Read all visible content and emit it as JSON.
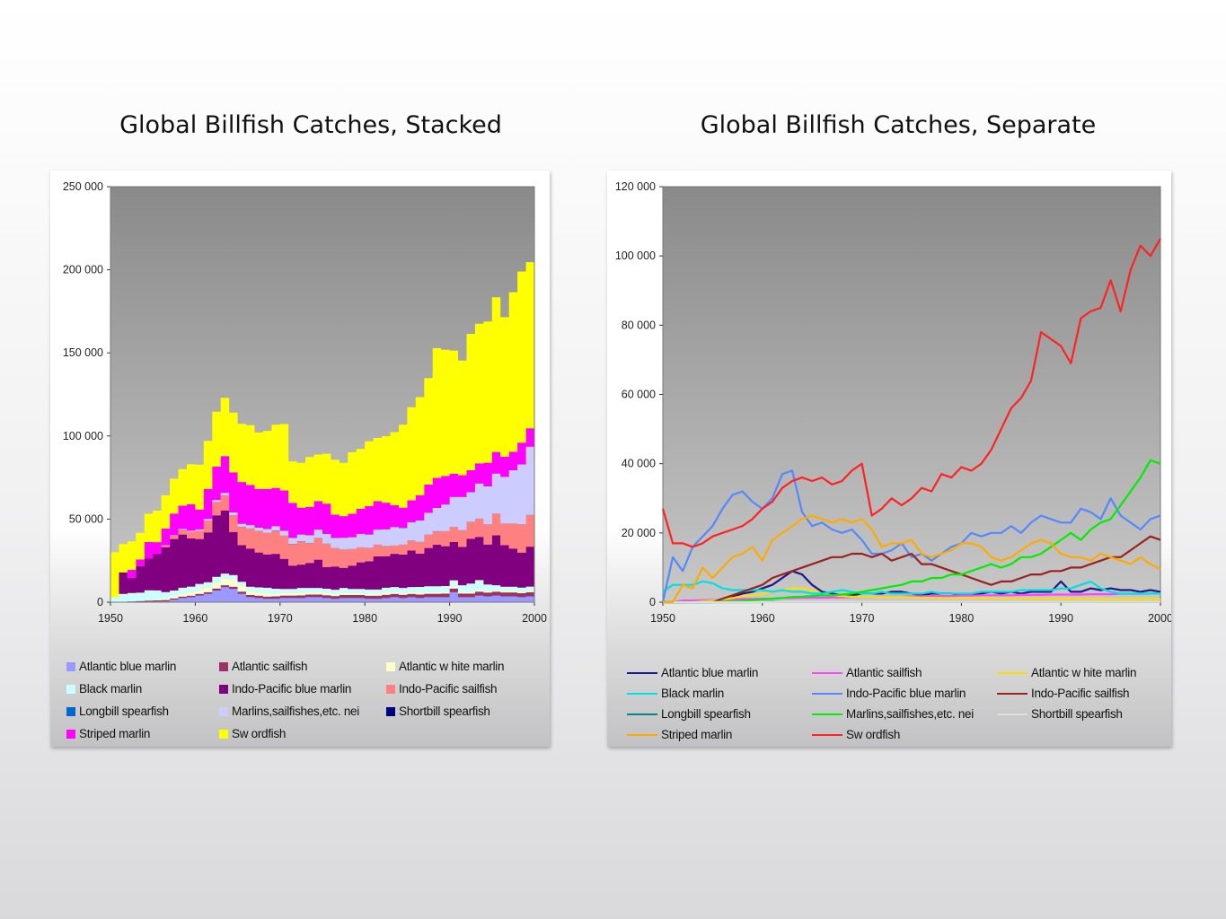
{
  "chart_data": [
    {
      "type": "area",
      "stacked": true,
      "title": "Global Billfish Catches, Stacked",
      "xlabel": "",
      "ylabel": "",
      "xlim": [
        1950,
        2000
      ],
      "ylim": [
        0,
        250000
      ],
      "x_ticks": [
        "1950",
        "1960",
        "1970",
        "1980",
        "1990",
        "2000"
      ],
      "y_ticks": [
        "0",
        "50 000",
        "100 000",
        "150 000",
        "200 000",
        "250 000"
      ],
      "grid": false,
      "legend": "bottom",
      "x": [
        1950,
        1951,
        1952,
        1953,
        1954,
        1955,
        1956,
        1957,
        1958,
        1959,
        1960,
        1961,
        1962,
        1963,
        1964,
        1965,
        1966,
        1967,
        1968,
        1969,
        1970,
        1971,
        1972,
        1973,
        1974,
        1975,
        1976,
        1977,
        1978,
        1979,
        1980,
        1981,
        1982,
        1983,
        1984,
        1985,
        1986,
        1987,
        1988,
        1989,
        1990,
        1991,
        1992,
        1993,
        1994,
        1995,
        1996,
        1997,
        1998,
        1999,
        2000
      ],
      "series": [
        {
          "name": "Atlantic blue marlin",
          "color": "#9999ff",
          "values": [
            0,
            0,
            0,
            200,
            300,
            400,
            500,
            1500,
            2500,
            3000,
            4000,
            5000,
            7000,
            9000,
            8000,
            5000,
            3000,
            2500,
            2000,
            2000,
            2500,
            2500,
            2500,
            3000,
            3000,
            2500,
            2000,
            2500,
            2500,
            2500,
            2000,
            2000,
            2500,
            3000,
            2500,
            3000,
            2500,
            3000,
            3000,
            3000,
            6000,
            3000,
            3000,
            4000,
            3500,
            4000,
            3500,
            3500,
            3000,
            3500,
            3000
          ]
        },
        {
          "name": "Atlantic sailfish",
          "color": "#993366",
          "values": [
            0,
            0,
            500,
            500,
            600,
            700,
            800,
            800,
            900,
            900,
            1000,
            1000,
            1200,
            1200,
            1300,
            1300,
            1300,
            1400,
            1400,
            1500,
            1500,
            1500,
            1600,
            1600,
            1600,
            1700,
            1700,
            1800,
            1800,
            1800,
            1900,
            1900,
            2000,
            2000,
            2000,
            2000,
            2100,
            2100,
            2100,
            2200,
            2200,
            2200,
            2200,
            2300,
            2300,
            2300,
            2400,
            2400,
            2400,
            2500,
            2500
          ]
        },
        {
          "name": "Atlantic white marlin",
          "color": "#ffffcc",
          "values": [
            0,
            0,
            0,
            0,
            300,
            500,
            800,
            1200,
            1800,
            2000,
            2500,
            3000,
            3500,
            4000,
            4000,
            3500,
            2500,
            2000,
            1800,
            1600,
            1500,
            1500,
            1500,
            1500,
            1500,
            1400,
            1300,
            1300,
            1200,
            1200,
            1200,
            1200,
            1200,
            1100,
            1100,
            1100,
            1100,
            1000,
            1000,
            1000,
            1000,
            1000,
            1000,
            1000,
            900,
            900,
            900,
            900,
            900,
            900,
            900
          ]
        },
        {
          "name": "Black marlin",
          "color": "#ccffff",
          "values": [
            3000,
            5000,
            5000,
            5000,
            6000,
            5500,
            4000,
            3500,
            3500,
            3500,
            3500,
            3000,
            3500,
            3000,
            3000,
            2500,
            2500,
            3000,
            3500,
            3000,
            2500,
            2500,
            3000,
            2500,
            2500,
            2500,
            2500,
            3000,
            2500,
            2500,
            2500,
            2500,
            3000,
            3000,
            3000,
            3000,
            3500,
            3500,
            3500,
            3500,
            4000,
            4000,
            5000,
            6000,
            4000,
            3000,
            2500,
            2500,
            2500,
            2500,
            2500
          ]
        },
        {
          "name": "Indo-Pacific blue marlin",
          "color": "#800080",
          "values": [
            0,
            13000,
            9000,
            16000,
            19000,
            22000,
            27000,
            31000,
            32000,
            29000,
            27000,
            30000,
            37000,
            38000,
            26000,
            22000,
            23000,
            21000,
            20000,
            21000,
            18000,
            14000,
            14000,
            15000,
            17000,
            13000,
            14000,
            12000,
            14000,
            16000,
            17000,
            20000,
            19000,
            20000,
            20000,
            22000,
            20000,
            23000,
            25000,
            24000,
            23000,
            23000,
            27000,
            26000,
            24000,
            30000,
            25000,
            23000,
            21000,
            24000,
            25000
          ]
        },
        {
          "name": "Indo-Pacific sailfish",
          "color": "#ff8080",
          "values": [
            0,
            0,
            0,
            0,
            0,
            0,
            1000,
            2000,
            3000,
            4000,
            5000,
            7000,
            8000,
            9000,
            10000,
            11000,
            12000,
            13000,
            13000,
            14000,
            14000,
            13000,
            14000,
            12000,
            13000,
            14000,
            11000,
            11000,
            10000,
            9000,
            8000,
            7000,
            6000,
            5000,
            6000,
            6000,
            7000,
            8000,
            8000,
            9000,
            9000,
            10000,
            10000,
            11000,
            12000,
            13000,
            13000,
            15000,
            17000,
            19000,
            18000
          ]
        },
        {
          "name": "Longbill spearfish",
          "color": "#0066cc",
          "values": [
            0,
            0,
            0,
            0,
            0,
            0,
            0,
            0,
            0,
            0,
            0,
            100,
            100,
            100,
            100,
            100,
            100,
            100,
            100,
            100,
            100,
            100,
            100,
            100,
            100,
            100,
            100,
            100,
            100,
            100,
            100,
            100,
            100,
            100,
            100,
            100,
            100,
            100,
            100,
            100,
            100,
            100,
            100,
            100,
            100,
            100,
            100,
            100,
            100,
            100,
            100
          ]
        },
        {
          "name": "Marlins,sailfishes,etc. nei",
          "color": "#ccccff",
          "values": [
            0,
            0,
            0,
            0,
            0,
            0,
            200,
            300,
            400,
            600,
            800,
            1000,
            1200,
            1500,
            1600,
            1800,
            2000,
            2000,
            2200,
            2500,
            3000,
            3500,
            4000,
            4500,
            5000,
            6000,
            6000,
            7000,
            7000,
            8000,
            8000,
            9000,
            10000,
            11000,
            10000,
            11000,
            13000,
            13000,
            14000,
            16000,
            18000,
            20000,
            18000,
            21000,
            23000,
            24000,
            28000,
            32000,
            36000,
            41000,
            40000
          ]
        },
        {
          "name": "Shortbill spearfish",
          "color": "#000080",
          "values": [
            0,
            0,
            0,
            0,
            0,
            0,
            0,
            0,
            0,
            0,
            0,
            0,
            100,
            100,
            100,
            100,
            100,
            100,
            100,
            100,
            100,
            100,
            100,
            100,
            100,
            100,
            100,
            100,
            100,
            100,
            100,
            100,
            100,
            100,
            100,
            100,
            100,
            100,
            100,
            100,
            100,
            100,
            100,
            100,
            100,
            100,
            100,
            100,
            100,
            100,
            100
          ]
        },
        {
          "name": "Striped marlin",
          "color": "#ff00ff",
          "values": [
            0,
            0,
            5000,
            4000,
            10000,
            7000,
            10000,
            13000,
            14000,
            16000,
            12000,
            18000,
            20000,
            22000,
            24000,
            25000,
            24000,
            23000,
            24000,
            23000,
            24000,
            21000,
            16000,
            17000,
            17000,
            18000,
            14000,
            13000,
            14000,
            15000,
            17000,
            17000,
            16000,
            13000,
            12000,
            13000,
            15000,
            17000,
            18000,
            17000,
            14000,
            13000,
            13000,
            12000,
            14000,
            13000,
            12000,
            11000,
            13000,
            11000,
            9500
          ]
        },
        {
          "name": "Swordfish",
          "color": "#ffff00",
          "values": [
            27000,
            17000,
            17000,
            16000,
            17000,
            19000,
            20000,
            21000,
            22000,
            24000,
            27000,
            29000,
            33000,
            35000,
            36000,
            35000,
            36000,
            34000,
            35000,
            38000,
            40000,
            25000,
            27000,
            30000,
            28000,
            30000,
            33000,
            32000,
            37000,
            36000,
            39000,
            38000,
            40000,
            44000,
            50000,
            56000,
            59000,
            64000,
            78000,
            76000,
            74000,
            69000,
            82000,
            84000,
            85000,
            93000,
            84000,
            96000,
            103000,
            100000,
            105000
          ]
        }
      ]
    },
    {
      "type": "line",
      "title": "Global Billfish Catches, Separate",
      "xlabel": "",
      "ylabel": "",
      "xlim": [
        1950,
        2000
      ],
      "ylim": [
        0,
        120000
      ],
      "x_ticks": [
        "1950",
        "1960",
        "1970",
        "1980",
        "1990",
        "2000"
      ],
      "y_ticks": [
        "0",
        "20 000",
        "40 000",
        "60 000",
        "80 000",
        "100 000",
        "120 000"
      ],
      "grid": false,
      "legend": "bottom",
      "series_note": "same series and values as the stacked chart",
      "series_colors": {
        "Atlantic blue marlin": "#1a1a8c",
        "Atlantic sailfish": "#ff44ff",
        "Atlantic white marlin": "#ffdd00",
        "Black marlin": "#00e0e0",
        "Indo-Pacific blue marlin": "#5588ff",
        "Indo-Pacific sailfish": "#992222",
        "Longbill spearfish": "#008888",
        "Marlins,sailfishes,etc. nei": "#00ee00",
        "Shortbill spearfish": "#dddddd",
        "Striped marlin": "#ffaa00",
        "Swordfish": "#ff2222"
      }
    }
  ],
  "legend_left": [
    {
      "label": "Atlantic blue marlin",
      "color": "#9999ff"
    },
    {
      "label": "Atlantic sailfish",
      "color": "#993366"
    },
    {
      "label": "Atlantic w hite marlin",
      "color": "#ffffcc"
    },
    {
      "label": "Black marlin",
      "color": "#ccffff"
    },
    {
      "label": "Indo-Pacific blue marlin",
      "color": "#800080"
    },
    {
      "label": "Indo-Pacific sailfish",
      "color": "#ff8080"
    },
    {
      "label": "Longbill spearfish",
      "color": "#0066cc"
    },
    {
      "label": "Marlins,sailfishes,etc. nei",
      "color": "#ccccff"
    },
    {
      "label": "Shortbill spearfish",
      "color": "#000080"
    },
    {
      "label": "Striped marlin",
      "color": "#ff00ff"
    },
    {
      "label": "Sw ordfish",
      "color": "#ffff00"
    }
  ],
  "legend_right": [
    {
      "label": "Atlantic blue marlin",
      "color": "#1a1a8c"
    },
    {
      "label": "Atlantic sailfish",
      "color": "#ff44ff"
    },
    {
      "label": "Atlantic w hite marlin",
      "color": "#ffdd00"
    },
    {
      "label": "Black marlin",
      "color": "#00e0e0"
    },
    {
      "label": "Indo-Pacific blue marlin",
      "color": "#5588ff"
    },
    {
      "label": "Indo-Pacific sailfish",
      "color": "#992222"
    },
    {
      "label": "Longbill spearfish",
      "color": "#008888"
    },
    {
      "label": "Marlins,sailfishes,etc. nei",
      "color": "#00ee00"
    },
    {
      "label": "Shortbill spearfish",
      "color": "#dddddd"
    },
    {
      "label": "Striped marlin",
      "color": "#ffaa00"
    },
    {
      "label": "Sw ordfish",
      "color": "#ff2222"
    }
  ],
  "colors": {
    "plot_background_top": "#8a8a8a",
    "plot_background_bottom": "#c8c8c8"
  }
}
